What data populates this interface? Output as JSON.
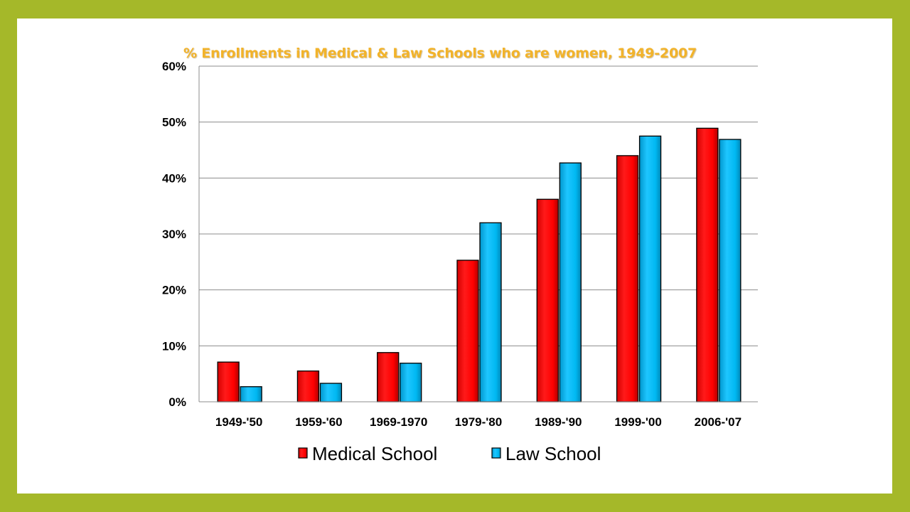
{
  "chart_data": {
    "type": "bar",
    "title": "% Enrollments in Medical & Law Schools who are women, 1949-2007",
    "categories": [
      "1949-'50",
      "1959-'60",
      "1969-1970",
      "1979-'80",
      "1989-'90",
      "1999-'00",
      "2006-'07"
    ],
    "series": [
      {
        "name": "Medical School",
        "color": "#ff0000",
        "values": [
          7.1,
          5.5,
          8.8,
          25.3,
          36.2,
          44.0,
          48.9
        ]
      },
      {
        "name": "Law School",
        "color": "#00b8f2",
        "values": [
          2.7,
          3.3,
          6.9,
          32.0,
          42.7,
          47.5,
          46.9
        ]
      }
    ],
    "ylim": [
      0,
      60
    ],
    "yticks": [
      0,
      10,
      20,
      30,
      40,
      50,
      60
    ],
    "ytick_labels": [
      "0%",
      "10%",
      "20%",
      "30%",
      "40%",
      "50%",
      "60%"
    ],
    "grid": true,
    "legend": "bottom"
  },
  "frame": {
    "background_color": "#a5b829",
    "title_color": "#f2b32a"
  }
}
